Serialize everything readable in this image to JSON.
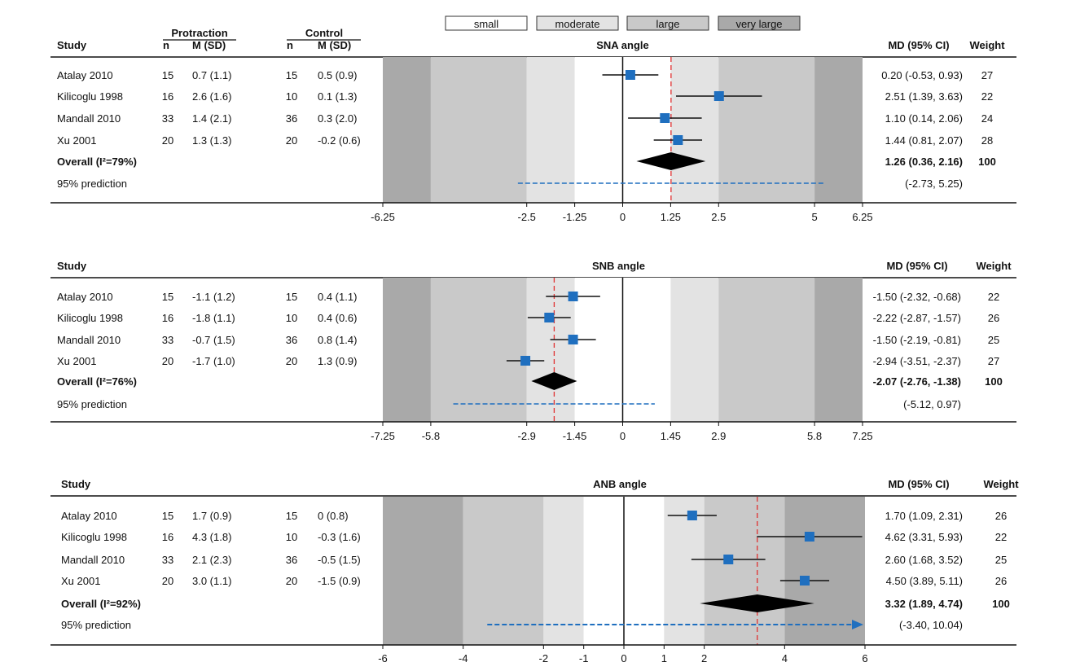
{
  "legend": {
    "items": [
      {
        "label": "small",
        "color": "#ffffff"
      },
      {
        "label": "moderate",
        "color": "#e3e3e3"
      },
      {
        "label": "large",
        "color": "#c9c9c9"
      },
      {
        "label": "very large",
        "color": "#a9a9a9"
      }
    ]
  },
  "headers": {
    "protraction": "Protraction",
    "control": "Control",
    "study": "Study",
    "n": "n",
    "msd": "M (SD)",
    "md": "MD (95% CI)",
    "weight": "Weight"
  },
  "colors": {
    "marker": "#1f6fbf",
    "overall_line": "#e03030",
    "prediction": "#1f6fbf"
  },
  "chart_data": [
    {
      "type": "forest",
      "title": "SNA angle",
      "ticks": [
        -6.25,
        -2.5,
        -1.25,
        0,
        1.25,
        2.5,
        5,
        6.25
      ],
      "tick_labels": [
        "-6.25",
        "-2.5",
        "-1.25",
        "0",
        "1.25",
        "2.5",
        "5",
        "6.25"
      ],
      "xlim": [
        -6.25,
        6.25
      ],
      "bands": {
        "small": 1.25,
        "moderate": 2.5,
        "large": 5
      },
      "studies": [
        {
          "name": "Atalay 2010",
          "p_n": "15",
          "p_msd": "0.7 (1.1)",
          "c_n": "15",
          "c_msd": "0.5 (0.9)",
          "md": 0.2,
          "lo": -0.53,
          "hi": 0.93,
          "ci_text": "0.20 (-0.53, 0.93)",
          "weight": "27"
        },
        {
          "name": "Kilicoglu 1998",
          "p_n": "16",
          "p_msd": "2.6 (1.6)",
          "c_n": "10",
          "c_msd": "0.1 (1.3)",
          "md": 2.51,
          "lo": 1.39,
          "hi": 3.63,
          "ci_text": "2.51 (1.39, 3.63)",
          "weight": "22"
        },
        {
          "name": "Mandall 2010",
          "p_n": "33",
          "p_msd": "1.4 (2.1)",
          "c_n": "36",
          "c_msd": "0.3 (2.0)",
          "md": 1.1,
          "lo": 0.14,
          "hi": 2.06,
          "ci_text": "1.10 (0.14, 2.06)",
          "weight": "24"
        },
        {
          "name": "Xu 2001",
          "p_n": "20",
          "p_msd": "1.3 (1.3)",
          "c_n": "20",
          "c_msd": "-0.2 (0.6)",
          "md": 1.44,
          "lo": 0.81,
          "hi": 2.07,
          "ci_text": "1.44 (0.81, 2.07)",
          "weight": "28"
        }
      ],
      "overall": {
        "label": "Overall (I²=79%)",
        "md": 1.26,
        "lo": 0.36,
        "hi": 2.16,
        "ci_text": "1.26 (0.36, 2.16)",
        "weight": "100"
      },
      "prediction": {
        "label": "95% prediction",
        "lo": -2.73,
        "hi": 5.25,
        "ci_text": "(-2.73, 5.25)",
        "arrow": false
      }
    },
    {
      "type": "forest",
      "title": "SNB angle",
      "ticks": [
        -7.25,
        -5.8,
        -2.9,
        -1.45,
        0,
        1.45,
        2.9,
        5.8,
        7.25
      ],
      "tick_labels": [
        "-7.25",
        "-5.8",
        "-2.9",
        "-1.45",
        "0",
        "1.45",
        "2.9",
        "5.8",
        "7.25"
      ],
      "xlim": [
        -7.25,
        7.25
      ],
      "bands": {
        "small": 1.45,
        "moderate": 2.9,
        "large": 5.8
      },
      "studies": [
        {
          "name": "Atalay 2010",
          "p_n": "15",
          "p_msd": "-1.1 (1.2)",
          "c_n": "15",
          "c_msd": "0.4 (1.1)",
          "md": -1.5,
          "lo": -2.32,
          "hi": -0.68,
          "ci_text": "-1.50 (-2.32, -0.68)",
          "weight": "22"
        },
        {
          "name": "Kilicoglu 1998",
          "p_n": "16",
          "p_msd": "-1.8 (1.1)",
          "c_n": "10",
          "c_msd": "0.4 (0.6)",
          "md": -2.22,
          "lo": -2.87,
          "hi": -1.57,
          "ci_text": "-2.22 (-2.87, -1.57)",
          "weight": "26"
        },
        {
          "name": "Mandall 2010",
          "p_n": "33",
          "p_msd": "-0.7 (1.5)",
          "c_n": "36",
          "c_msd": "0.8 (1.4)",
          "md": -1.5,
          "lo": -2.19,
          "hi": -0.81,
          "ci_text": "-1.50 (-2.19, -0.81)",
          "weight": "25"
        },
        {
          "name": "Xu 2001",
          "p_n": "20",
          "p_msd": "-1.7 (1.0)",
          "c_n": "20",
          "c_msd": "1.3 (0.9)",
          "md": -2.94,
          "lo": -3.51,
          "hi": -2.37,
          "ci_text": "-2.94 (-3.51, -2.37)",
          "weight": "27"
        }
      ],
      "overall": {
        "label": "Overall (I²=76%)",
        "md": -2.07,
        "lo": -2.76,
        "hi": -1.38,
        "ci_text": "-2.07 (-2.76, -1.38)",
        "weight": "100"
      },
      "prediction": {
        "label": "95% prediction",
        "lo": -5.12,
        "hi": 0.97,
        "ci_text": "(-5.12, 0.97)",
        "arrow": false
      }
    },
    {
      "type": "forest",
      "title": "ANB angle",
      "ticks": [
        -6,
        -4,
        -2,
        -1,
        0,
        1,
        2,
        4,
        6
      ],
      "tick_labels": [
        "-6",
        "-4",
        "-2",
        "-1",
        "0",
        "1",
        "2",
        "4",
        "6"
      ],
      "xlim": [
        -6,
        6
      ],
      "bands": {
        "small": 1,
        "moderate": 2,
        "large": 4
      },
      "studies": [
        {
          "name": "Atalay 2010",
          "p_n": "15",
          "p_msd": "1.7 (0.9)",
          "c_n": "15",
          "c_msd": "0 (0.8)",
          "md": 1.7,
          "lo": 1.09,
          "hi": 2.31,
          "ci_text": "1.70 (1.09, 2.31)",
          "weight": "26"
        },
        {
          "name": "Kilicoglu 1998",
          "p_n": "16",
          "p_msd": "4.3 (1.8)",
          "c_n": "10",
          "c_msd": "-0.3 (1.6)",
          "md": 4.62,
          "lo": 3.31,
          "hi": 5.93,
          "ci_text": "4.62 (3.31, 5.93)",
          "weight": "22"
        },
        {
          "name": "Mandall 2010",
          "p_n": "33",
          "p_msd": "2.1 (2.3)",
          "c_n": "36",
          "c_msd": "-0.5 (1.5)",
          "md": 2.6,
          "lo": 1.68,
          "hi": 3.52,
          "ci_text": "2.60 (1.68, 3.52)",
          "weight": "25"
        },
        {
          "name": "Xu 2001",
          "p_n": "20",
          "p_msd": "3.0 (1.1)",
          "c_n": "20",
          "c_msd": "-1.5 (0.9)",
          "md": 4.5,
          "lo": 3.89,
          "hi": 5.11,
          "ci_text": "4.50 (3.89, 5.11)",
          "weight": "26"
        }
      ],
      "overall": {
        "label": "Overall (I²=92%)",
        "md": 3.32,
        "lo": 1.89,
        "hi": 4.74,
        "ci_text": "3.32 (1.89, 4.74)",
        "weight": "100"
      },
      "prediction": {
        "label": "95% prediction",
        "lo": -3.4,
        "hi": 10.04,
        "ci_text": "(-3.40, 10.04)",
        "arrow": true
      }
    }
  ]
}
